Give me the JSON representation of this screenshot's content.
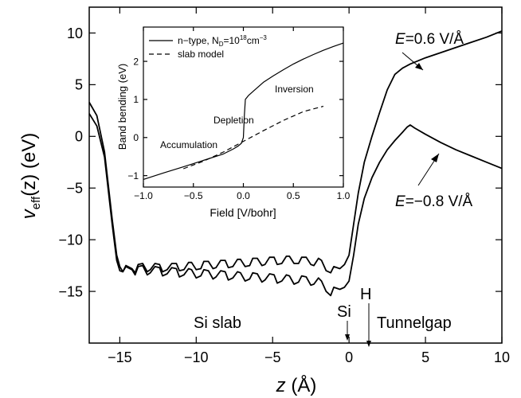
{
  "chart_data": [
    {
      "type": "line",
      "title": "",
      "xlabel": {
        "italic": "z",
        "rest": " (Å)"
      },
      "ylabel": {
        "italic": "v",
        "sub": "eff",
        "rest": "(z) (eV)"
      },
      "xlim": [
        -17,
        10
      ],
      "ylim": [
        -20,
        12.5
      ],
      "xticks": [
        -15,
        -10,
        -5,
        0,
        5,
        10
      ],
      "xtick_labels": [
        "−15",
        "−10",
        "−5",
        "0",
        "5",
        "10"
      ],
      "yticks": [
        -15,
        -10,
        -5,
        0,
        5,
        10
      ],
      "ytick_labels": [
        "−15",
        "−10",
        "−5",
        "0",
        "5",
        "10"
      ],
      "grid": false,
      "series": [
        {
          "name": "E=0.6 V/Å",
          "x": [
            -17,
            -16.5,
            -16,
            -15.5,
            -15.2,
            -15,
            -14.8,
            -14.6,
            -14.2,
            -14,
            -13.8,
            -13.5,
            -13.2,
            -13,
            -12.7,
            -12.4,
            -12.2,
            -11.9,
            -11.6,
            -11.3,
            -11.1,
            -10.8,
            -10.5,
            -10.3,
            -10,
            -9.7,
            -9.5,
            -9.2,
            -8.9,
            -8.7,
            -8.4,
            -8.1,
            -7.9,
            -7.6,
            -7.3,
            -7.1,
            -6.8,
            -6.5,
            -6.3,
            -6,
            -5.7,
            -5.5,
            -5.2,
            -4.9,
            -4.7,
            -4.4,
            -4.1,
            -3.9,
            -3.6,
            -3.3,
            -3.1,
            -2.8,
            -2.5,
            -2.3,
            -2,
            -1.8,
            -1.5,
            -1.2,
            -1,
            -0.6,
            -0.3,
            0,
            0.3,
            0.6,
            1,
            1.5,
            2,
            2.5,
            3,
            3.5,
            4,
            5,
            6,
            7,
            8,
            9,
            10
          ],
          "y": [
            3.3,
            2,
            -1.5,
            -8,
            -11.5,
            -12.6,
            -13.1,
            -12.5,
            -12.8,
            -13.2,
            -12.4,
            -12.3,
            -13.1,
            -12.9,
            -12.3,
            -12.4,
            -13.1,
            -12.9,
            -12.3,
            -12.3,
            -13,
            -12.9,
            -12.2,
            -12.2,
            -12.9,
            -12.8,
            -12.1,
            -12.1,
            -12.8,
            -12.7,
            -12.0,
            -12.0,
            -12.7,
            -12.6,
            -11.9,
            -11.9,
            -12.6,
            -12.5,
            -11.8,
            -11.8,
            -12.5,
            -12.4,
            -11.7,
            -11.7,
            -12.4,
            -12.3,
            -11.6,
            -11.6,
            -12.3,
            -12.3,
            -11.7,
            -11.7,
            -12.4,
            -12.5,
            -11.8,
            -12.0,
            -13.0,
            -13.2,
            -12.6,
            -12.8,
            -12.4,
            -11.5,
            -8.5,
            -5.5,
            -2.5,
            0,
            2.3,
            4.5,
            6,
            6.6,
            7,
            7.6,
            8.1,
            8.6,
            9.1,
            9.6,
            10.2
          ]
        },
        {
          "name": "E=−0.8 V/Å",
          "x": [
            -17,
            -16.5,
            -16,
            -15.5,
            -15.2,
            -15,
            -14.8,
            -14.6,
            -14.2,
            -14,
            -13.8,
            -13.5,
            -13.2,
            -13,
            -12.7,
            -12.4,
            -12.2,
            -11.9,
            -11.6,
            -11.3,
            -11.1,
            -10.8,
            -10.5,
            -10.3,
            -10,
            -9.7,
            -9.5,
            -9.2,
            -8.9,
            -8.7,
            -8.4,
            -8.1,
            -7.9,
            -7.6,
            -7.3,
            -7.1,
            -6.8,
            -6.5,
            -6.3,
            -6,
            -5.7,
            -5.5,
            -5.2,
            -4.9,
            -4.7,
            -4.4,
            -4.1,
            -3.9,
            -3.6,
            -3.3,
            -3.1,
            -2.8,
            -2.5,
            -2.3,
            -2,
            -1.8,
            -1.5,
            -1.2,
            -1,
            -0.6,
            -0.3,
            0,
            0.3,
            0.6,
            1,
            1.5,
            2,
            2.5,
            3,
            3.5,
            3.8,
            4,
            4.3,
            5,
            6,
            7,
            8,
            9,
            10
          ],
          "y": [
            2.2,
            1,
            -2,
            -8.5,
            -12,
            -13,
            -13.1,
            -12.6,
            -12.9,
            -13.4,
            -12.6,
            -12.5,
            -13.4,
            -13.2,
            -12.6,
            -12.7,
            -13.5,
            -13.3,
            -12.7,
            -12.8,
            -13.6,
            -13.4,
            -12.8,
            -12.9,
            -13.7,
            -13.5,
            -12.9,
            -13.0,
            -13.8,
            -13.6,
            -13.0,
            -13.1,
            -13.9,
            -13.7,
            -13.1,
            -13.2,
            -14.0,
            -13.8,
            -13.2,
            -13.3,
            -14.1,
            -13.9,
            -13.3,
            -13.4,
            -14.2,
            -14.0,
            -13.4,
            -13.5,
            -14.3,
            -14.1,
            -13.5,
            -13.6,
            -14.4,
            -14.3,
            -13.7,
            -14.0,
            -15.0,
            -15.4,
            -14.6,
            -14.8,
            -14.6,
            -14.0,
            -11.5,
            -8.5,
            -6,
            -4,
            -2.5,
            -1.3,
            -0.4,
            0.4,
            0.9,
            1.1,
            0.8,
            0.2,
            -0.6,
            -1.3,
            -1.9,
            -2.5,
            -3.1
          ]
        }
      ],
      "annotations": [
        {
          "text_italic": "E",
          "text_rest": "=0.6 V/Å",
          "arrow": true
        },
        {
          "text_italic": "E",
          "text_rest": "=−0.8 V/Å",
          "arrow": true
        },
        {
          "text": "Si slab"
        },
        {
          "text": "Si",
          "arrow": true
        },
        {
          "text": "H",
          "arrow": true
        },
        {
          "text": "Tunnelgap"
        }
      ]
    },
    {
      "type": "line",
      "title": "",
      "xlabel": "Field [V/bohr]",
      "ylabel": "Band bending (eV)",
      "xlim": [
        -1.0,
        1.0
      ],
      "ylim": [
        -1.3,
        2.9
      ],
      "xticks": [
        -1.0,
        -0.5,
        0.0,
        0.5,
        1.0
      ],
      "xtick_labels": [
        "−1.0",
        "−0.5",
        "0.0",
        "0.5",
        "1.0"
      ],
      "yticks": [
        -1,
        0,
        1,
        2
      ],
      "ytick_labels": [
        "−1",
        "0",
        "1",
        "2"
      ],
      "grid": false,
      "legend_position": "top-left",
      "series": [
        {
          "name_parts": [
            "n−type, N",
            "D",
            "=10",
            "18",
            "cm",
            "−3"
          ],
          "style": "solid",
          "x": [
            -1.0,
            -0.8,
            -0.6,
            -0.4,
            -0.2,
            -0.1,
            -0.05,
            -0.02,
            0.0,
            0.01,
            0.02,
            0.05,
            0.1,
            0.2,
            0.3,
            0.4,
            0.5,
            0.6,
            0.7,
            0.8,
            0.9,
            1.0
          ],
          "y": [
            -1.1,
            -0.93,
            -0.77,
            -0.6,
            -0.43,
            -0.3,
            -0.22,
            -0.15,
            0.0,
            0.6,
            1.0,
            1.1,
            1.22,
            1.45,
            1.62,
            1.78,
            1.93,
            2.06,
            2.18,
            2.29,
            2.39,
            2.48
          ]
        },
        {
          "name": "slab model",
          "style": "dashed",
          "x": [
            -0.6,
            -0.4,
            -0.2,
            0.0,
            0.2,
            0.4,
            0.6,
            0.8
          ],
          "y": [
            -0.82,
            -0.62,
            -0.38,
            -0.1,
            0.18,
            0.45,
            0.68,
            0.82
          ]
        }
      ],
      "annotations": [
        "Inversion",
        "Depletion",
        "Accumulation"
      ]
    }
  ]
}
